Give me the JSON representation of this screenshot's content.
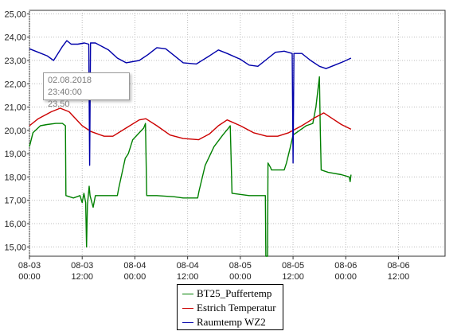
{
  "chart_data": {
    "type": "line",
    "x_ticks": [
      {
        "label": [
          "08-03",
          "00:00"
        ],
        "t": 0
      },
      {
        "label": [
          "08-03",
          "12:00"
        ],
        "t": 12
      },
      {
        "label": [
          "08-04",
          "00:00"
        ],
        "t": 24
      },
      {
        "label": [
          "08-04",
          "12:00"
        ],
        "t": 36
      },
      {
        "label": [
          "08-05",
          "00:00"
        ],
        "t": 48
      },
      {
        "label": [
          "08-05",
          "12:00"
        ],
        "t": 60
      },
      {
        "label": [
          "08-06",
          "00:00"
        ],
        "t": 72
      },
      {
        "label": [
          "08-06",
          "12:00"
        ],
        "t": 84
      }
    ],
    "y_ticks": [
      "15,00",
      "16,00",
      "17,00",
      "18,00",
      "19,00",
      "20,00",
      "21,00",
      "22,00",
      "23,00",
      "24,00",
      "25,00"
    ],
    "xlim": [
      0,
      94.6
    ],
    "ylim": [
      14.6,
      25.15
    ],
    "grid": true,
    "legend_position": "bottom",
    "series": [
      {
        "name": "BT25_Puffertemp",
        "color": "#008000",
        "points": [
          [
            0,
            19.3
          ],
          [
            0.8,
            19.9
          ],
          [
            2.5,
            20.2
          ],
          [
            4,
            20.25
          ],
          [
            6,
            20.3
          ],
          [
            7.5,
            20.3
          ],
          [
            8.2,
            20.2
          ],
          [
            8.3,
            17.2
          ],
          [
            10,
            17.1
          ],
          [
            11.5,
            17.2
          ],
          [
            12,
            16.9
          ],
          [
            12.4,
            17.3
          ],
          [
            12.8,
            16.9
          ],
          [
            13,
            15.0
          ],
          [
            13.2,
            16.8
          ],
          [
            13.6,
            17.6
          ],
          [
            13.8,
            17.2
          ],
          [
            14.5,
            16.7
          ],
          [
            15,
            17.2
          ],
          [
            20,
            17.2
          ],
          [
            20.3,
            17.5
          ],
          [
            21.8,
            18.8
          ],
          [
            22.5,
            19.0
          ],
          [
            23.5,
            19.6
          ],
          [
            26,
            20.1
          ],
          [
            26.4,
            20.3
          ],
          [
            26.7,
            17.2
          ],
          [
            29,
            17.2
          ],
          [
            33,
            17.15
          ],
          [
            35,
            17.1
          ],
          [
            38.3,
            17.1
          ],
          [
            38.6,
            17.4
          ],
          [
            40,
            18.5
          ],
          [
            42,
            19.3
          ],
          [
            44,
            19.8
          ],
          [
            45.3,
            20.1
          ],
          [
            45.7,
            20.2
          ],
          [
            46.1,
            17.3
          ],
          [
            50,
            17.2
          ],
          [
            53.7,
            17.2
          ],
          [
            53.8,
            14.6
          ],
          [
            54.2,
            14.6
          ],
          [
            54.3,
            18.6
          ],
          [
            54.9,
            18.4
          ],
          [
            55.1,
            18.3
          ],
          [
            58,
            18.3
          ],
          [
            58.5,
            18.6
          ],
          [
            59.4,
            19.3
          ],
          [
            60,
            19.8
          ],
          [
            63,
            20.2
          ],
          [
            64.5,
            20.3
          ],
          [
            65.2,
            21.0
          ],
          [
            66,
            22.3
          ],
          [
            66.2,
            20.0
          ],
          [
            66.4,
            18.3
          ],
          [
            68,
            18.2
          ],
          [
            71,
            18.1
          ],
          [
            72.8,
            18.0
          ],
          [
            73,
            17.8
          ],
          [
            73.2,
            18.1
          ]
        ]
      },
      {
        "name": "Estrich Temperatur",
        "color": "#cc0000",
        "points": [
          [
            0,
            20.2
          ],
          [
            2,
            20.5
          ],
          [
            5,
            20.8
          ],
          [
            7,
            20.95
          ],
          [
            9,
            20.8
          ],
          [
            12,
            20.2
          ],
          [
            14,
            19.95
          ],
          [
            17,
            19.75
          ],
          [
            19,
            19.75
          ],
          [
            22,
            20.1
          ],
          [
            25,
            20.45
          ],
          [
            26.5,
            20.5
          ],
          [
            29,
            20.2
          ],
          [
            32,
            19.8
          ],
          [
            35,
            19.65
          ],
          [
            38.5,
            19.6
          ],
          [
            41,
            19.85
          ],
          [
            43,
            20.2
          ],
          [
            45,
            20.45
          ],
          [
            48,
            20.2
          ],
          [
            51,
            19.9
          ],
          [
            54,
            19.75
          ],
          [
            56.5,
            19.75
          ],
          [
            59,
            19.9
          ],
          [
            62,
            20.2
          ],
          [
            65,
            20.55
          ],
          [
            67,
            20.75
          ],
          [
            69,
            20.5
          ],
          [
            71,
            20.25
          ],
          [
            73.2,
            20.05
          ]
        ]
      },
      {
        "name": "Raumtemp WZ2",
        "color": "#0000aa",
        "points": [
          [
            0,
            23.5
          ],
          [
            2,
            23.35
          ],
          [
            4,
            23.2
          ],
          [
            5.5,
            23.0
          ],
          [
            7.5,
            23.6
          ],
          [
            8.5,
            23.85
          ],
          [
            9.5,
            23.7
          ],
          [
            11,
            23.7
          ],
          [
            12.5,
            23.75
          ],
          [
            13.5,
            23.7
          ],
          [
            13.7,
            18.5
          ],
          [
            13.9,
            23.75
          ],
          [
            15,
            23.75
          ],
          [
            18,
            23.45
          ],
          [
            20,
            23.1
          ],
          [
            22,
            22.9
          ],
          [
            25,
            23.0
          ],
          [
            27,
            23.25
          ],
          [
            29,
            23.55
          ],
          [
            31,
            23.5
          ],
          [
            33,
            23.2
          ],
          [
            35,
            22.9
          ],
          [
            38,
            22.85
          ],
          [
            41,
            23.2
          ],
          [
            43,
            23.45
          ],
          [
            45,
            23.3
          ],
          [
            48,
            23.05
          ],
          [
            50,
            22.8
          ],
          [
            52,
            22.75
          ],
          [
            54,
            23.05
          ],
          [
            56,
            23.35
          ],
          [
            58,
            23.4
          ],
          [
            59.8,
            23.3
          ],
          [
            60,
            18.6
          ],
          [
            60.2,
            23.3
          ],
          [
            62,
            23.3
          ],
          [
            64,
            23.0
          ],
          [
            66,
            22.75
          ],
          [
            67.5,
            22.65
          ],
          [
            69.5,
            22.8
          ],
          [
            71.5,
            22.95
          ],
          [
            73.2,
            23.1
          ]
        ]
      }
    ]
  },
  "legend": {
    "items": [
      {
        "label": "BT25_Puffertemp",
        "color": "#008000"
      },
      {
        "label": "Estrich Temperatur",
        "color": "#cc0000"
      },
      {
        "label": "Raumtemp WZ2",
        "color": "#0000aa"
      }
    ]
  },
  "tooltip": {
    "datetime": "02.08.2018 23:40:00",
    "value": "23,50"
  }
}
